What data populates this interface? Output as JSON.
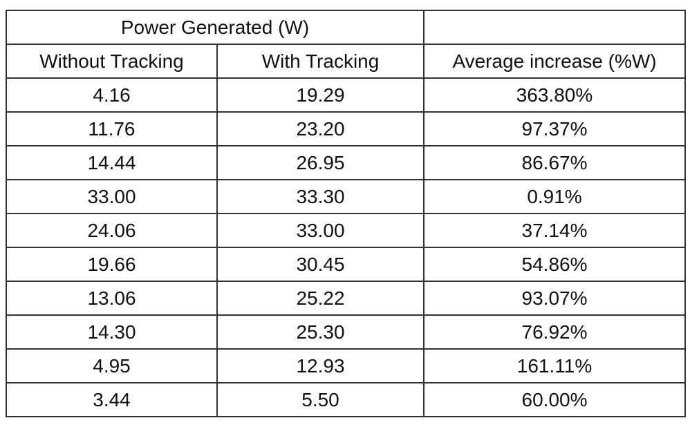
{
  "table": {
    "group_header": "Power Generated (W)",
    "columns": [
      "Without Tracking",
      "With Tracking",
      "Average increase (%W)"
    ],
    "rows": [
      [
        "4.16",
        "19.29",
        "363.80%"
      ],
      [
        "11.76",
        "23.20",
        "97.37%"
      ],
      [
        "14.44",
        "26.95",
        "86.67%"
      ],
      [
        "33.00",
        "33.30",
        "0.91%"
      ],
      [
        "24.06",
        "33.00",
        "37.14%"
      ],
      [
        "19.66",
        "30.45",
        "54.86%"
      ],
      [
        "13.06",
        "25.22",
        "93.07%"
      ],
      [
        "14.30",
        "25.30",
        "76.92%"
      ],
      [
        "4.95",
        "12.93",
        "161.11%"
      ],
      [
        "3.44",
        "5.50",
        "60.00%"
      ]
    ]
  }
}
